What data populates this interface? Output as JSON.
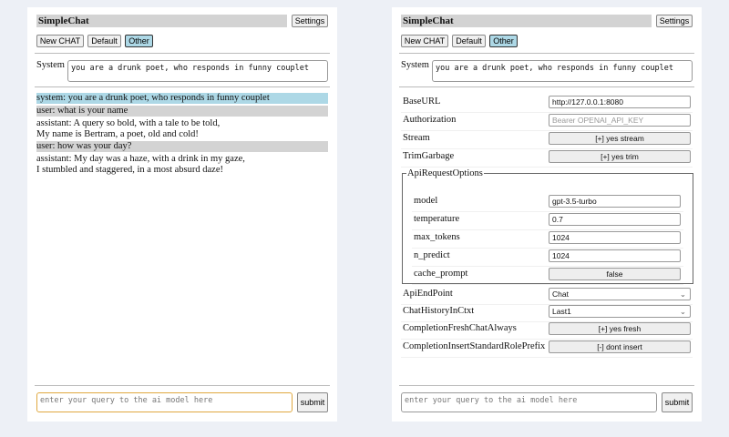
{
  "app": {
    "title": "SimpleChat",
    "settings_label": "Settings",
    "new_chat_label": "New CHAT",
    "sessions": [
      "Default",
      "Other"
    ],
    "active_session": "Other",
    "accent": "#add8e6"
  },
  "system": {
    "label": "System",
    "value": "you are a drunk poet, who responds in funny couplet"
  },
  "chat": [
    {
      "role": "system",
      "lines": [
        "system: you are a drunk poet, who responds in funny couplet"
      ]
    },
    {
      "role": "user",
      "lines": [
        "user: what is your name"
      ]
    },
    {
      "role": "assistant",
      "lines": [
        "assistant: A query so bold, with a tale to be told,",
        "My name is Bertram, a poet, old and cold!"
      ]
    },
    {
      "role": "user",
      "lines": [
        "user: how was your day?"
      ]
    },
    {
      "role": "assistant",
      "lines": [
        "assistant: My day was a haze, with a drink in my gaze,",
        "I stumbled and staggered, in a most absurd daze!"
      ]
    }
  ],
  "input": {
    "placeholder": "enter your query to the ai model here",
    "submit_label": "submit"
  },
  "settings": {
    "base_url": {
      "label": "BaseURL",
      "value": "http://127.0.0.1:8080"
    },
    "authorization": {
      "label": "Authorization",
      "placeholder": "Bearer OPENAI_API_KEY"
    },
    "stream": {
      "label": "Stream",
      "value": "[+] yes stream"
    },
    "trim": {
      "label": "TrimGarbage",
      "value": "[+] yes trim"
    },
    "api_options": {
      "legend": "ApiRequestOptions",
      "model": {
        "label": "model",
        "value": "gpt-3.5-turbo"
      },
      "temperature": {
        "label": "temperature",
        "value": "0.7"
      },
      "max_tokens": {
        "label": "max_tokens",
        "value": "1024"
      },
      "n_predict": {
        "label": "n_predict",
        "value": "1024"
      },
      "cache_prompt": {
        "label": "cache_prompt",
        "value": "false"
      }
    },
    "endpoint": {
      "label": "ApiEndPoint",
      "value": "Chat"
    },
    "history": {
      "label": "ChatHistoryInCtxt",
      "value": "Last1"
    },
    "fresh": {
      "label": "CompletionFreshChatAlways",
      "value": "[+] yes fresh"
    },
    "prefix": {
      "label": "CompletionInsertStandardRolePrefix",
      "value": "[-] dont insert"
    }
  }
}
